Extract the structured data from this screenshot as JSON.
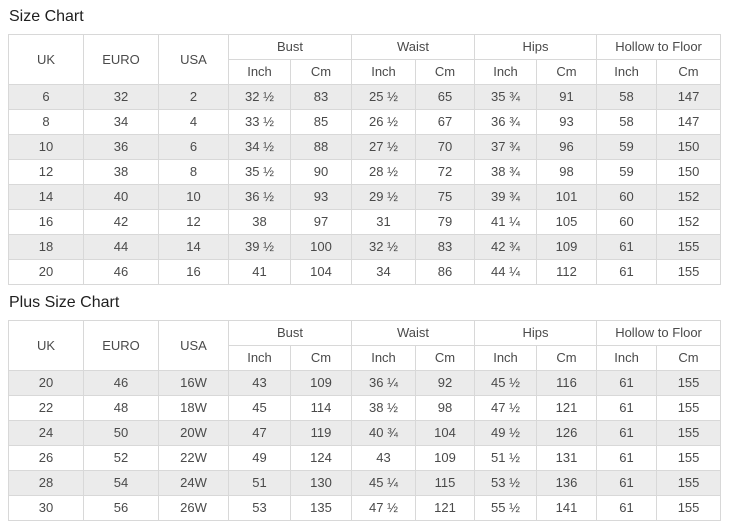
{
  "colors": {
    "stripe": "#ebebeb",
    "border": "#d8d8d8",
    "text": "#4a4a4a",
    "title": "#1f1f1f",
    "background": "#ffffff"
  },
  "tables": [
    {
      "title": "Size Chart",
      "simple_headers": [
        "UK",
        "EURO",
        "USA"
      ],
      "group_headers": [
        {
          "label": "Bust",
          "sub": [
            "Inch",
            "Cm"
          ]
        },
        {
          "label": "Waist",
          "sub": [
            "Inch",
            "Cm"
          ]
        },
        {
          "label": "Hips",
          "sub": [
            "Inch",
            "Cm"
          ]
        },
        {
          "label": "Hollow to Floor",
          "sub": [
            "Inch",
            "Cm"
          ]
        }
      ],
      "rows": [
        [
          "6",
          "32",
          "2",
          "32 ½",
          "83",
          "25 ½",
          "65",
          "35 ¾",
          "91",
          "58",
          "147"
        ],
        [
          "8",
          "34",
          "4",
          "33 ½",
          "85",
          "26 ½",
          "67",
          "36 ¾",
          "93",
          "58",
          "147"
        ],
        [
          "10",
          "36",
          "6",
          "34 ½",
          "88",
          "27 ½",
          "70",
          "37 ¾",
          "96",
          "59",
          "150"
        ],
        [
          "12",
          "38",
          "8",
          "35 ½",
          "90",
          "28 ½",
          "72",
          "38 ¾",
          "98",
          "59",
          "150"
        ],
        [
          "14",
          "40",
          "10",
          "36 ½",
          "93",
          "29 ½",
          "75",
          "39 ¾",
          "101",
          "60",
          "152"
        ],
        [
          "16",
          "42",
          "12",
          "38",
          "97",
          "31",
          "79",
          "41 ¼",
          "105",
          "60",
          "152"
        ],
        [
          "18",
          "44",
          "14",
          "39 ½",
          "100",
          "32 ½",
          "83",
          "42 ¾",
          "109",
          "61",
          "155"
        ],
        [
          "20",
          "46",
          "16",
          "41",
          "104",
          "34",
          "86",
          "44 ¼",
          "112",
          "61",
          "155"
        ]
      ]
    },
    {
      "title": "Plus Size Chart",
      "simple_headers": [
        "UK",
        "EURO",
        "USA"
      ],
      "group_headers": [
        {
          "label": "Bust",
          "sub": [
            "Inch",
            "Cm"
          ]
        },
        {
          "label": "Waist",
          "sub": [
            "Inch",
            "Cm"
          ]
        },
        {
          "label": "Hips",
          "sub": [
            "Inch",
            "Cm"
          ]
        },
        {
          "label": "Hollow to Floor",
          "sub": [
            "Inch",
            "Cm"
          ]
        }
      ],
      "rows": [
        [
          "20",
          "46",
          "16W",
          "43",
          "109",
          "36 ¼",
          "92",
          "45 ½",
          "116",
          "61",
          "155"
        ],
        [
          "22",
          "48",
          "18W",
          "45",
          "114",
          "38 ½",
          "98",
          "47 ½",
          "121",
          "61",
          "155"
        ],
        [
          "24",
          "50",
          "20W",
          "47",
          "119",
          "40 ¾",
          "104",
          "49 ½",
          "126",
          "61",
          "155"
        ],
        [
          "26",
          "52",
          "22W",
          "49",
          "124",
          "43",
          "109",
          "51 ½",
          "131",
          "61",
          "155"
        ],
        [
          "28",
          "54",
          "24W",
          "51",
          "130",
          "45 ¼",
          "115",
          "53 ½",
          "136",
          "61",
          "155"
        ],
        [
          "30",
          "56",
          "26W",
          "53",
          "135",
          "47 ½",
          "121",
          "55 ½",
          "141",
          "61",
          "155"
        ]
      ]
    }
  ]
}
